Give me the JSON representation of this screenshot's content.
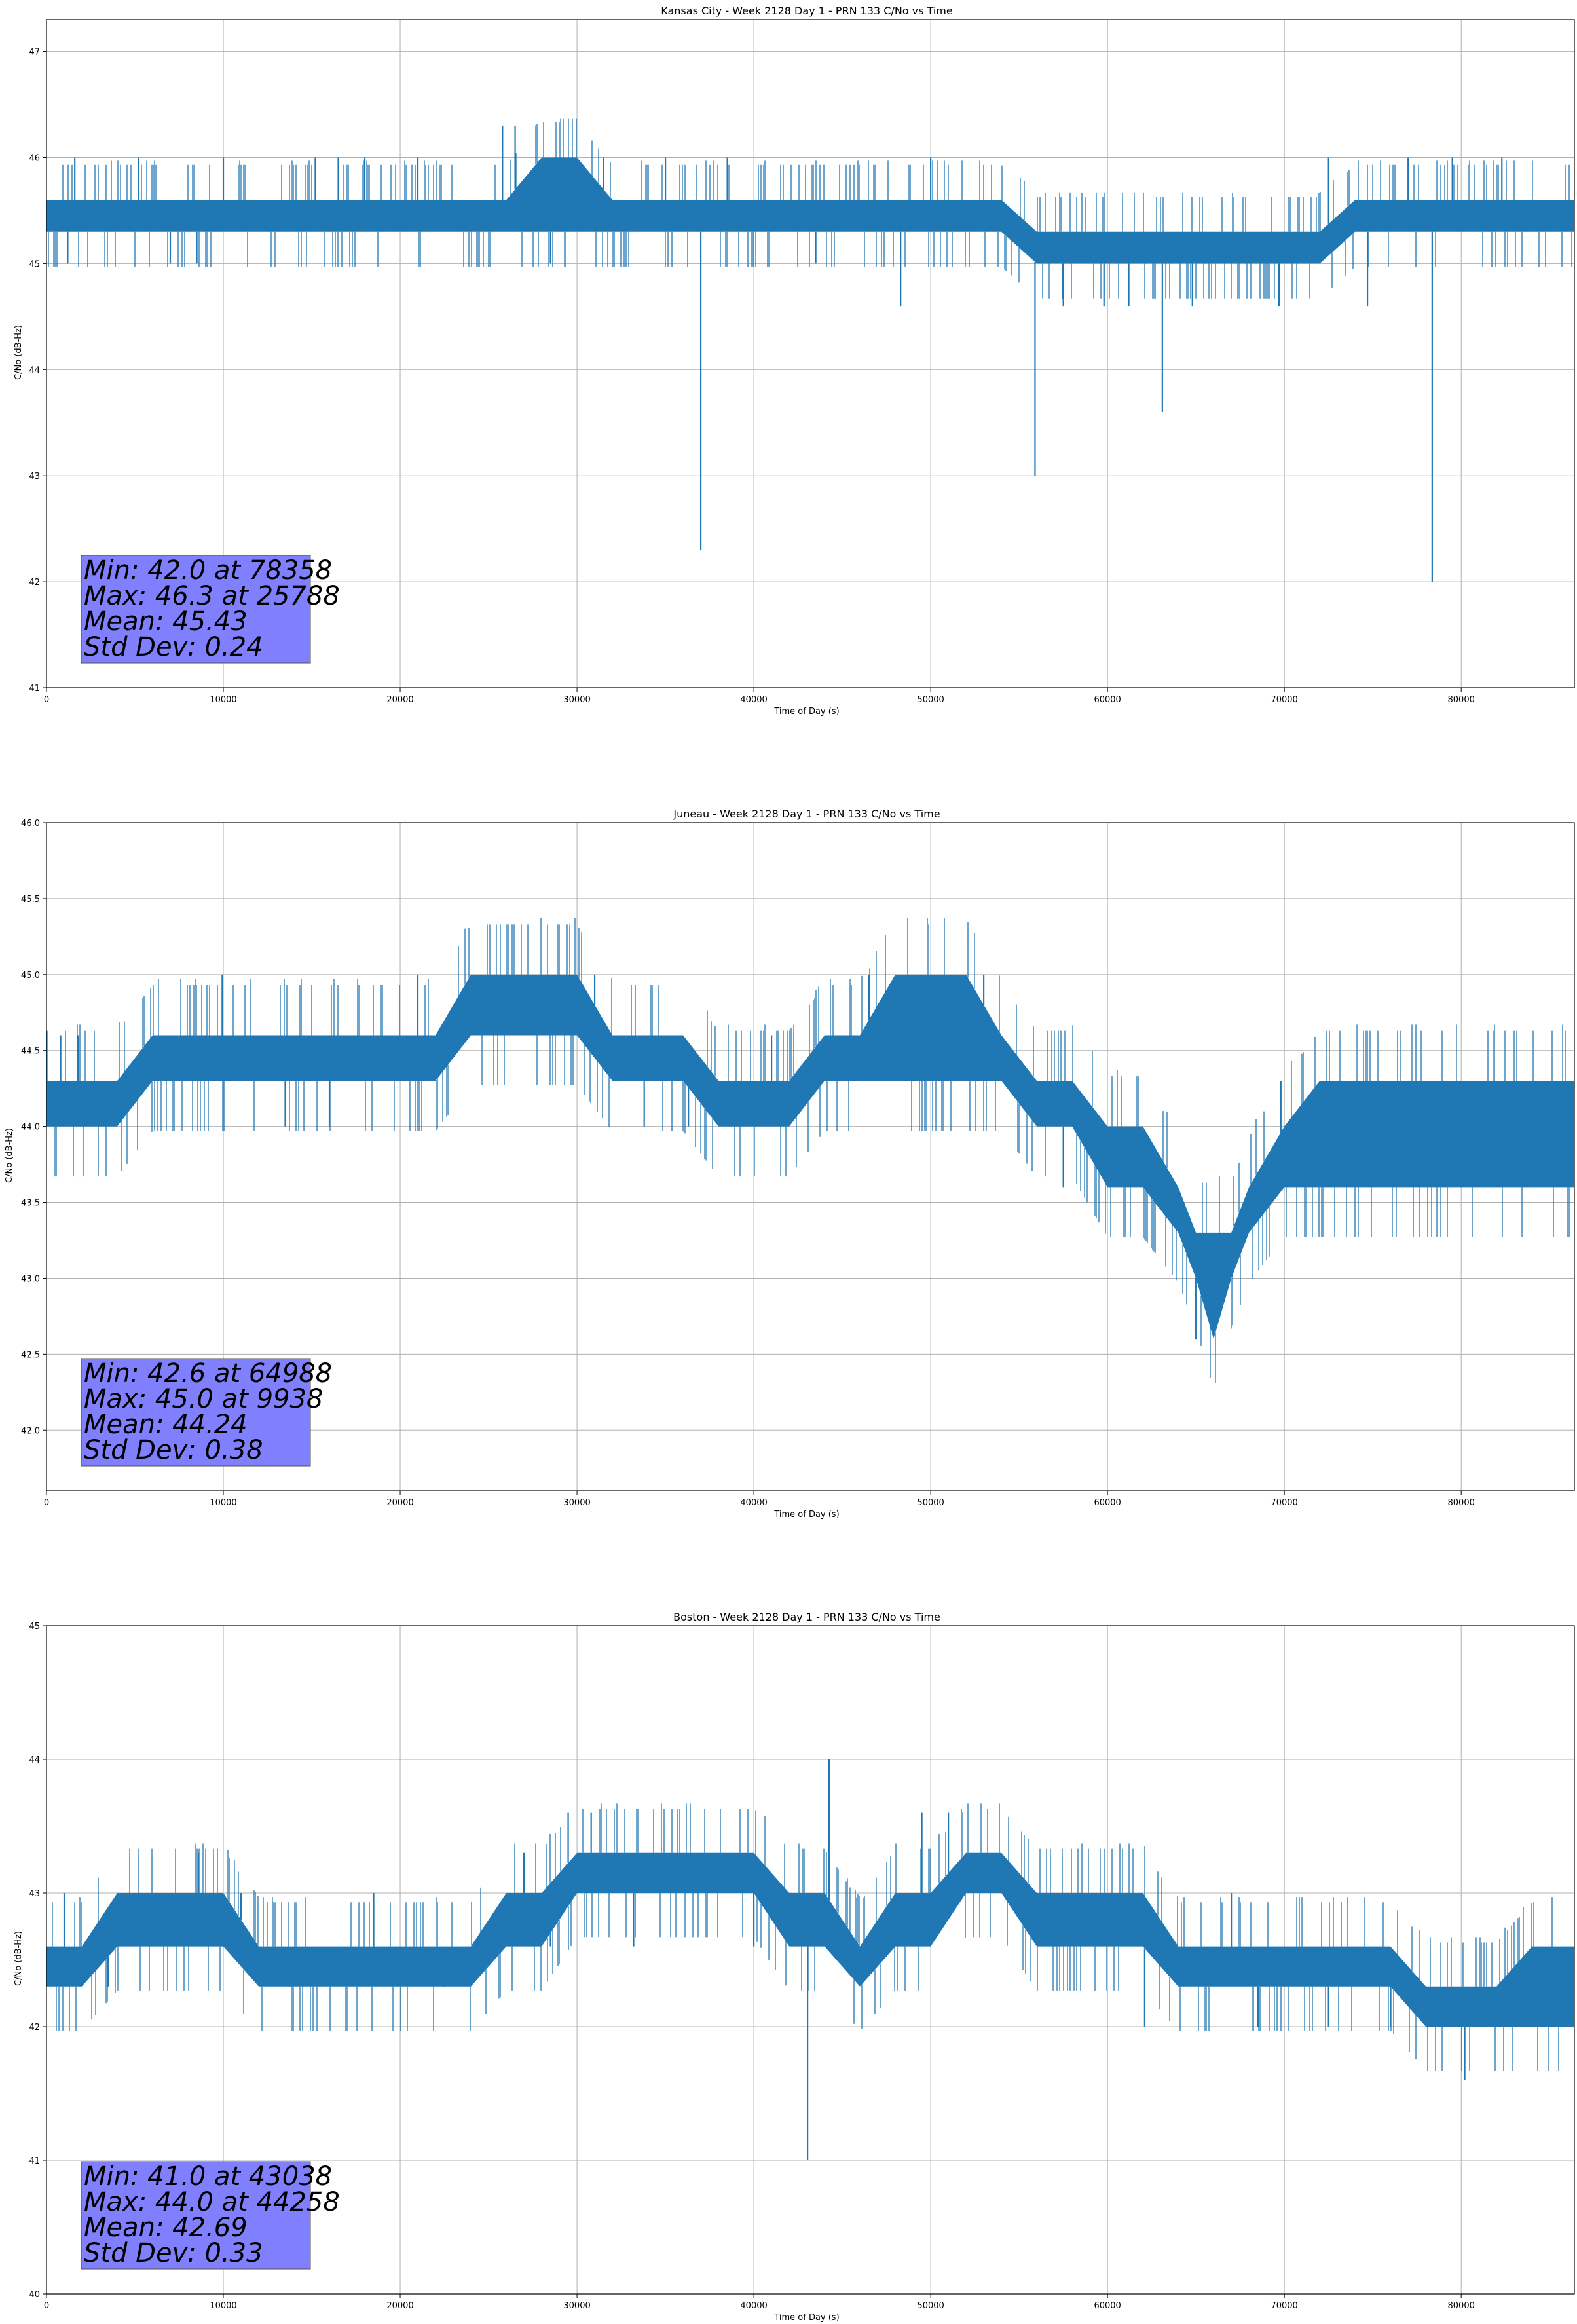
{
  "figure": {
    "background": "#ffffff"
  },
  "chart_data": [
    {
      "type": "line",
      "title": "Kansas City - Week 2128 Day 1 - PRN 133 C/No vs Time",
      "xlabel": "Time of Day (s)",
      "ylabel": "C/No (dB-Hz)",
      "xlim": [
        0,
        86400
      ],
      "ylim": [
        41,
        47.3
      ],
      "xticks": [
        0,
        10000,
        20000,
        30000,
        40000,
        50000,
        60000,
        70000,
        80000
      ],
      "yticks": [
        41,
        42,
        43,
        44,
        45,
        46,
        47
      ],
      "ytick_labels": [
        "41",
        "42",
        "43",
        "44",
        "45",
        "46",
        "47"
      ],
      "grid": true,
      "color": "#1f77b4",
      "stats_box": [
        "Min: 42.0 at 78358",
        "Max: 46.3 at 25788",
        "Mean: 45.43",
        "Std Dev: 0.24"
      ],
      "series": [
        {
          "x": [
            0,
            2000,
            4000,
            6000,
            8000,
            10000,
            12000,
            14000,
            16000,
            18000,
            20000,
            22000,
            24000,
            26000,
            28000,
            30000,
            32000,
            34000,
            36000,
            38000,
            40000,
            42000,
            44000,
            46000,
            48000,
            50000,
            52000,
            54000,
            56000,
            58000,
            60000,
            62000,
            64000,
            66000,
            68000,
            70000,
            72000,
            74000,
            76000,
            78000,
            80000,
            82000,
            84000,
            86400
          ],
          "band_low": [
            45.3,
            45.3,
            45.3,
            45.3,
            45.3,
            45.3,
            45.3,
            45.3,
            45.3,
            45.3,
            45.3,
            45.3,
            45.3,
            45.3,
            45.3,
            45.3,
            45.3,
            45.3,
            45.3,
            45.3,
            45.3,
            45.3,
            45.3,
            45.3,
            45.3,
            45.3,
            45.3,
            45.3,
            45.0,
            45.0,
            45.0,
            45.0,
            45.0,
            45.0,
            45.0,
            45.0,
            45.0,
            45.3,
            45.3,
            45.3,
            45.3,
            45.3,
            45.3,
            45.3
          ],
          "band_high": [
            45.6,
            45.6,
            45.6,
            45.6,
            45.6,
            45.6,
            45.6,
            45.6,
            45.6,
            45.6,
            45.6,
            45.6,
            45.6,
            45.6,
            46.0,
            46.0,
            45.6,
            45.6,
            45.6,
            45.6,
            45.6,
            45.6,
            45.6,
            45.6,
            45.6,
            45.6,
            45.6,
            45.6,
            45.3,
            45.3,
            45.3,
            45.3,
            45.3,
            45.3,
            45.3,
            45.3,
            45.3,
            45.6,
            45.6,
            45.6,
            45.6,
            45.6,
            45.6,
            45.6
          ],
          "spikes": [
            [
              1200,
              45.0
            ],
            [
              1600,
              46.0
            ],
            [
              5200,
              46.0
            ],
            [
              7000,
              45.0
            ],
            [
              8500,
              45.0
            ],
            [
              10000,
              46.0
            ],
            [
              15200,
              46.0
            ],
            [
              16500,
              46.0
            ],
            [
              18000,
              46.0
            ],
            [
              21000,
              46.0
            ],
            [
              25788,
              46.3
            ],
            [
              26500,
              46.3
            ],
            [
              28500,
              45.0
            ],
            [
              31500,
              46.0
            ],
            [
              35000,
              46.0
            ],
            [
              37000,
              42.3
            ],
            [
              38500,
              46.0
            ],
            [
              43500,
              45.0
            ],
            [
              48300,
              44.6
            ],
            [
              50000,
              46.0
            ],
            [
              55900,
              43.0
            ],
            [
              57500,
              44.6
            ],
            [
              59800,
              44.6
            ],
            [
              61200,
              44.6
            ],
            [
              63100,
              43.6
            ],
            [
              64800,
              44.6
            ],
            [
              69700,
              44.6
            ],
            [
              72500,
              46.0
            ],
            [
              74700,
              44.6
            ],
            [
              77000,
              46.0
            ],
            [
              78358,
              42.0
            ],
            [
              79500,
              46.0
            ],
            [
              82300,
              46.0
            ]
          ]
        }
      ]
    },
    {
      "type": "line",
      "title": "Juneau - Week 2128 Day 1 - PRN 133 C/No vs Time",
      "xlabel": "Time of Day (s)",
      "ylabel": "C/No (dB-Hz)",
      "xlim": [
        0,
        86400
      ],
      "ylim": [
        41.6,
        46.0
      ],
      "xticks": [
        0,
        10000,
        20000,
        30000,
        40000,
        50000,
        60000,
        70000,
        80000
      ],
      "yticks": [
        42.0,
        42.5,
        43.0,
        43.5,
        44.0,
        44.5,
        45.0,
        45.5,
        46.0
      ],
      "ytick_labels": [
        "42.0",
        "42.5",
        "43.0",
        "43.5",
        "44.0",
        "44.5",
        "45.0",
        "45.5",
        "46.0"
      ],
      "grid": true,
      "color": "#1f77b4",
      "stats_box": [
        "Min: 42.6 at 64988",
        "Max: 45.0 at 9938",
        "Mean: 44.24",
        "Std Dev: 0.38"
      ],
      "series": [
        {
          "x": [
            0,
            2000,
            4000,
            6000,
            8000,
            10000,
            12000,
            14000,
            16000,
            18000,
            20000,
            22000,
            24000,
            26000,
            28000,
            30000,
            32000,
            34000,
            36000,
            38000,
            40000,
            42000,
            44000,
            46000,
            48000,
            50000,
            52000,
            54000,
            56000,
            58000,
            60000,
            62000,
            64000,
            65000,
            66000,
            67000,
            68000,
            70000,
            72000,
            74000,
            76000,
            78000,
            80000,
            82000,
            84000,
            86400
          ],
          "band_low": [
            44.0,
            44.0,
            44.0,
            44.3,
            44.3,
            44.3,
            44.3,
            44.3,
            44.3,
            44.3,
            44.3,
            44.3,
            44.6,
            44.6,
            44.6,
            44.6,
            44.3,
            44.3,
            44.3,
            44.0,
            44.0,
            44.0,
            44.3,
            44.3,
            44.3,
            44.3,
            44.3,
            44.3,
            44.0,
            44.0,
            43.6,
            43.6,
            43.3,
            43.0,
            42.6,
            43.0,
            43.3,
            43.6,
            43.6,
            43.6,
            43.6,
            43.6,
            43.6,
            43.6,
            43.6,
            43.6
          ],
          "band_high": [
            44.3,
            44.3,
            44.3,
            44.6,
            44.6,
            44.6,
            44.6,
            44.6,
            44.6,
            44.6,
            44.6,
            44.6,
            45.0,
            45.0,
            45.0,
            45.0,
            44.6,
            44.6,
            44.6,
            44.3,
            44.3,
            44.3,
            44.6,
            44.6,
            45.0,
            45.0,
            45.0,
            44.6,
            44.3,
            44.3,
            44.0,
            44.0,
            43.6,
            43.3,
            43.3,
            43.3,
            43.6,
            44.0,
            44.3,
            44.3,
            44.3,
            44.3,
            44.3,
            44.3,
            44.3,
            44.3
          ],
          "spikes": [
            [
              800,
              44.6
            ],
            [
              1800,
              44.6
            ],
            [
              7000,
              44.6
            ],
            [
              9938,
              45.0
            ],
            [
              13500,
              44.0
            ],
            [
              16000,
              44.0
            ],
            [
              21000,
              45.0
            ],
            [
              27500,
              45.0
            ],
            [
              31000,
              45.0
            ],
            [
              33800,
              44.0
            ],
            [
              36300,
              44.0
            ],
            [
              38600,
              44.0
            ],
            [
              41000,
              44.6
            ],
            [
              44500,
              44.6
            ],
            [
              46500,
              45.0
            ],
            [
              50000,
              45.0
            ],
            [
              53000,
              45.0
            ],
            [
              57500,
              43.6
            ],
            [
              59000,
              44.0
            ],
            [
              64988,
              42.6
            ],
            [
              69800,
              44.3
            ],
            [
              73000,
              44.3
            ],
            [
              75000,
              43.6
            ],
            [
              79000,
              43.6
            ]
          ]
        }
      ]
    },
    {
      "type": "line",
      "title": "Boston - Week 2128 Day 1 - PRN 133 C/No vs Time",
      "xlabel": "Time of Day (s)",
      "ylabel": "C/No (dB-Hz)",
      "xlim": [
        0,
        86400
      ],
      "ylim": [
        40,
        45
      ],
      "xticks": [
        0,
        10000,
        20000,
        30000,
        40000,
        50000,
        60000,
        70000,
        80000
      ],
      "yticks": [
        40,
        41,
        42,
        43,
        44,
        45
      ],
      "ytick_labels": [
        "40",
        "41",
        "42",
        "43",
        "44",
        "45"
      ],
      "grid": true,
      "color": "#1f77b4",
      "stats_box": [
        "Min: 41.0 at 43038",
        "Max: 44.0 at 44258",
        "Mean: 42.69",
        "Std Dev: 0.33"
      ],
      "series": [
        {
          "x": [
            0,
            2000,
            4000,
            6000,
            8000,
            10000,
            12000,
            14000,
            16000,
            18000,
            20000,
            22000,
            24000,
            26000,
            28000,
            30000,
            32000,
            34000,
            36000,
            38000,
            40000,
            42000,
            44000,
            46000,
            48000,
            50000,
            52000,
            54000,
            56000,
            58000,
            60000,
            62000,
            64000,
            66000,
            68000,
            70000,
            72000,
            74000,
            76000,
            78000,
            80000,
            82000,
            84000,
            86400
          ],
          "band_low": [
            42.3,
            42.3,
            42.6,
            42.6,
            42.6,
            42.6,
            42.3,
            42.3,
            42.3,
            42.3,
            42.3,
            42.3,
            42.3,
            42.6,
            42.6,
            43.0,
            43.0,
            43.0,
            43.0,
            43.0,
            43.0,
            42.6,
            42.6,
            42.3,
            42.6,
            42.6,
            43.0,
            43.0,
            42.6,
            42.6,
            42.6,
            42.6,
            42.3,
            42.3,
            42.3,
            42.3,
            42.3,
            42.3,
            42.3,
            42.0,
            42.0,
            42.0,
            42.0,
            42.0
          ],
          "band_high": [
            42.6,
            42.6,
            43.0,
            43.0,
            43.0,
            43.0,
            42.6,
            42.6,
            42.6,
            42.6,
            42.6,
            42.6,
            42.6,
            43.0,
            43.0,
            43.3,
            43.3,
            43.3,
            43.3,
            43.3,
            43.3,
            43.0,
            43.0,
            42.6,
            43.0,
            43.0,
            43.3,
            43.3,
            43.0,
            43.0,
            43.0,
            43.0,
            42.6,
            42.6,
            42.6,
            42.6,
            42.6,
            42.6,
            42.6,
            42.3,
            42.3,
            42.3,
            42.6,
            42.6
          ],
          "spikes": [
            [
              1000,
              43.0
            ],
            [
              3500,
              42.3
            ],
            [
              8600,
              43.3
            ],
            [
              11000,
              43.0
            ],
            [
              13800,
              42.3
            ],
            [
              18500,
              43.0
            ],
            [
              22500,
              42.3
            ],
            [
              27000,
              43.3
            ],
            [
              28500,
              42.6
            ],
            [
              29500,
              43.6
            ],
            [
              30800,
              43.6
            ],
            [
              33200,
              42.6
            ],
            [
              37000,
              43.3
            ],
            [
              40000,
              42.6
            ],
            [
              43038,
              41.0
            ],
            [
              44258,
              44.0
            ],
            [
              46000,
              42.6
            ],
            [
              49500,
              43.6
            ],
            [
              51000,
              43.6
            ],
            [
              53500,
              43.3
            ],
            [
              57000,
              42.6
            ],
            [
              62100,
              42.0
            ],
            [
              67000,
              43.0
            ],
            [
              68500,
              42.0
            ],
            [
              72500,
              42.0
            ],
            [
              76000,
              42.0
            ],
            [
              80200,
              41.6
            ],
            [
              84000,
              42.6
            ]
          ]
        }
      ]
    }
  ]
}
